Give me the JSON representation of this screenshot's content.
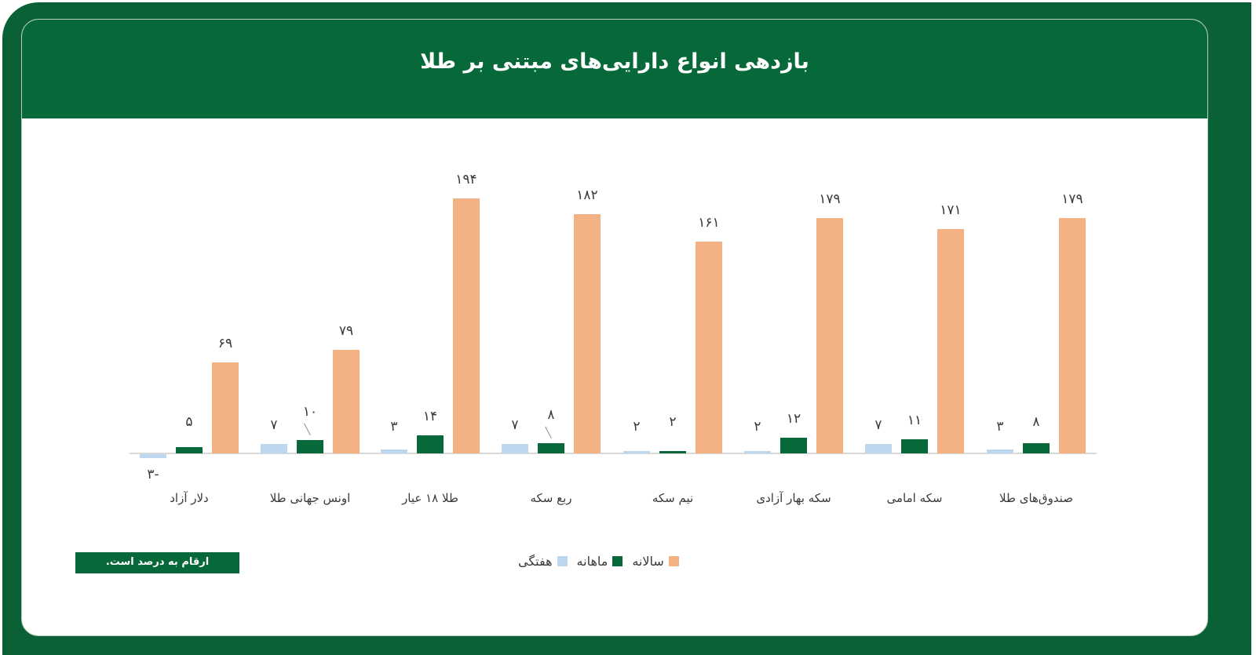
{
  "header": {
    "title": "بازدهی انواع دارایی‌های مبتنی بر طلا"
  },
  "note": {
    "label": "ارقام به درصد است."
  },
  "legend": {
    "items": [
      {
        "label": "سالانه",
        "color": "#f2b083"
      },
      {
        "label": "ماهانه",
        "color": "#07693a"
      },
      {
        "label": "هفتگی",
        "color": "#bdd7ee"
      }
    ]
  },
  "labels": {
    "categories": [
      "دلار آزاد",
      "اونس جهانی طلا",
      "طلا ۱۸ عیار",
      "ربع سکه",
      "نیم سکه",
      "سکه بهار آزادی",
      "سکه امامی",
      "صندوق‌های طلا"
    ],
    "weekly": [
      "-۳",
      "۷",
      "۳",
      "۷",
      "۲",
      "۲",
      "۷",
      "۳"
    ],
    "monthly": [
      "۵",
      "۱۰",
      "۱۴",
      "۸",
      "۲",
      "۱۲",
      "۱۱",
      "۸"
    ],
    "annual": [
      "۶۹",
      "۷۹",
      "۱۹۴",
      "۱۸۲",
      "۱۶۱",
      "۱۷۹",
      "۱۷۱",
      "۱۷۹"
    ]
  },
  "chart_data": {
    "type": "bar",
    "title": "بازدهی انواع دارایی‌های مبتنی بر طلا",
    "xlabel": "",
    "ylabel": "",
    "unit": "percent",
    "categories": [
      "دلار آزاد",
      "اونس جهانی طلا",
      "طلا ۱۸ عیار",
      "ربع سکه",
      "نیم سکه",
      "سکه بهار آزادی",
      "سکه امامی",
      "صندوق‌های طلا"
    ],
    "category_order_note": "listed left-to-right as drawn",
    "series": [
      {
        "name": "هفتگی",
        "color": "#bdd7ee",
        "values": [
          -3,
          7,
          3,
          7,
          2,
          2,
          7,
          3
        ]
      },
      {
        "name": "ماهانه",
        "color": "#07693a",
        "values": [
          5,
          10,
          14,
          8,
          2,
          12,
          11,
          8
        ]
      },
      {
        "name": "سالانه",
        "color": "#f2b083",
        "values": [
          69,
          79,
          194,
          182,
          161,
          179,
          171,
          179
        ]
      }
    ],
    "ylim": [
      -5,
      200
    ],
    "grid": false,
    "legend_position": "bottom",
    "annotations": [
      "ارقام به درصد است."
    ]
  }
}
